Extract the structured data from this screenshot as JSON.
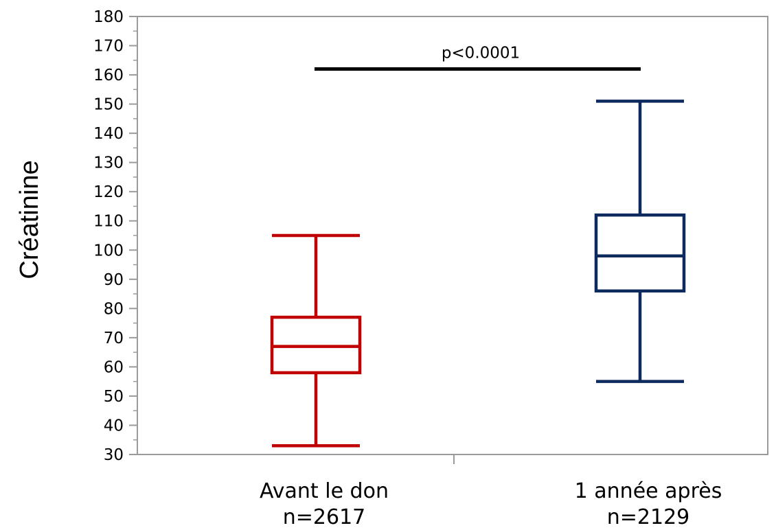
{
  "chart_data": {
    "type": "box",
    "ylabel": "Créatinine",
    "xlabel": "",
    "ylim": [
      30,
      180
    ],
    "yticks": [
      "30",
      "40",
      "50",
      "60",
      "70",
      "80",
      "90",
      "100",
      "110",
      "120",
      "130",
      "140",
      "150",
      "160",
      "170",
      "180"
    ],
    "grid": false,
    "categories": [
      {
        "name": "Avant le don",
        "n_label": "n=2617",
        "color": "#c00000",
        "whisker_low": 33,
        "q1": 58,
        "median": 67,
        "q3": 77,
        "whisker_high": 105
      },
      {
        "name": "1 année après",
        "n_label": "n=2129",
        "color": "#0d2a5e",
        "whisker_low": 55,
        "q1": 86,
        "median": 98,
        "q3": 112,
        "whisker_high": 151
      }
    ],
    "annotation": {
      "text": "p<0.0001",
      "y": 162
    }
  }
}
